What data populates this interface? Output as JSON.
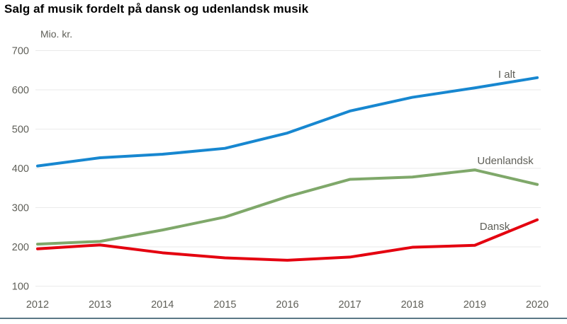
{
  "title": "Salg af musik fordelt på dansk og udenlandsk musik",
  "chart_data": {
    "type": "line",
    "title": "Salg af musik fordelt på dansk og udenlandsk musik",
    "unit_label": "Mio. kr.",
    "xlabel": "",
    "ylabel": "Mio. kr.",
    "x": [
      "2012",
      "2013",
      "2014",
      "2015",
      "2016",
      "2017",
      "2018",
      "2019",
      "2020"
    ],
    "series": [
      {
        "name": "I alt",
        "color": "#1787d0",
        "values": [
          406,
          427,
          436,
          451,
          490,
          546,
          581,
          605,
          631
        ]
      },
      {
        "name": "Udenlandsk",
        "color": "#7fa86a",
        "values": [
          207,
          214,
          243,
          276,
          328,
          372,
          378,
          396,
          359
        ]
      },
      {
        "name": "Dansk",
        "color": "#e4000f",
        "values": [
          195,
          205,
          185,
          172,
          166,
          174,
          199,
          204,
          269
        ]
      }
    ],
    "ylim": [
      100,
      700
    ],
    "yticks": [
      100,
      200,
      300,
      400,
      500,
      600,
      700
    ],
    "grid": "horizontal-only",
    "legend_position": "inline-right-of-lines"
  },
  "colors": {
    "title_text": "#000000",
    "axis_text": "#5f5f58",
    "series_label_text": "#5f5f58",
    "gridline": "#eaeaea",
    "bottom_rule": "#5b7886",
    "background": "#ffffff"
  }
}
